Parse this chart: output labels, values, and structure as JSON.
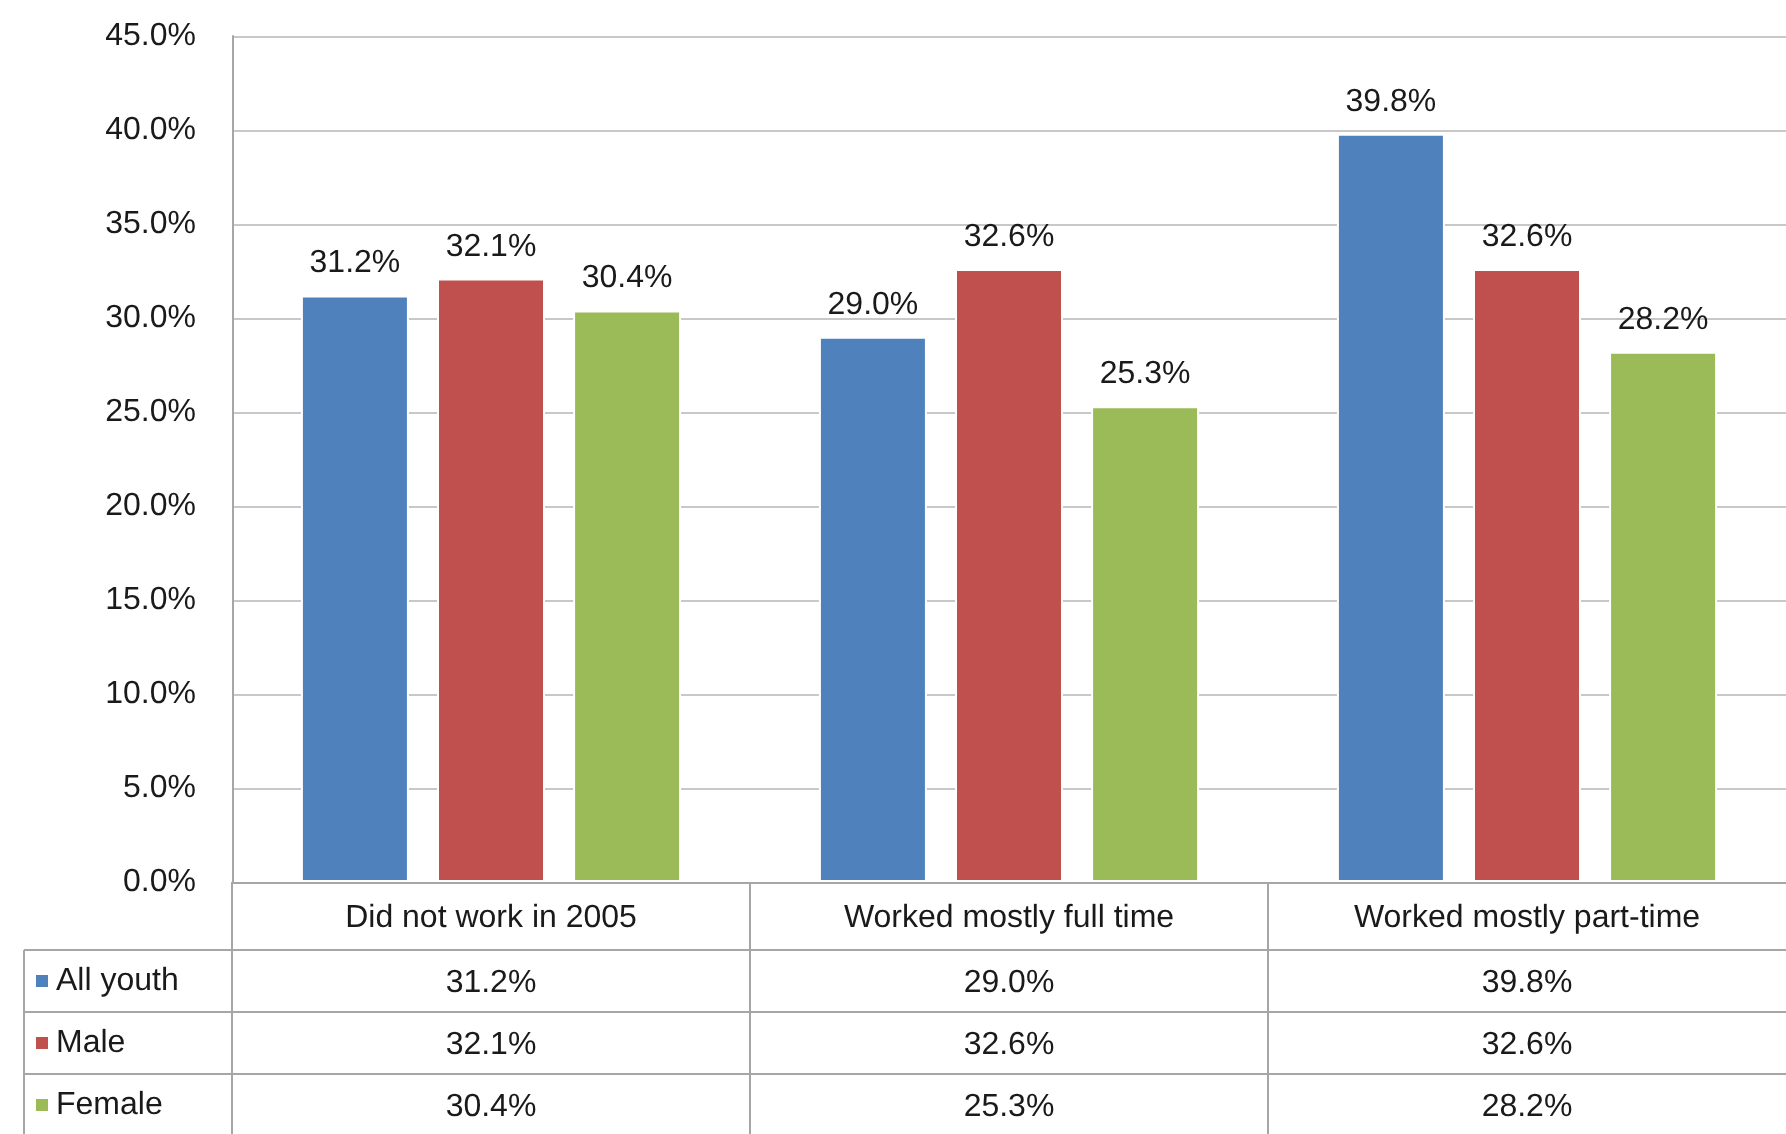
{
  "chart_data": {
    "type": "bar",
    "categories": [
      "Did not work in 2005",
      "Worked mostly full time",
      "Worked mostly part-time"
    ],
    "series": [
      {
        "name": "All youth",
        "color": "#4f81bd",
        "values": [
          31.2,
          29.0,
          39.8
        ],
        "value_labels": [
          "31.2%",
          "29.0%",
          "39.8%"
        ]
      },
      {
        "name": "Male",
        "color": "#c0504d",
        "values": [
          32.1,
          32.6,
          32.6
        ],
        "value_labels": [
          "32.1%",
          "32.6%",
          "32.6%"
        ]
      },
      {
        "name": "Female",
        "color": "#9bbb59",
        "values": [
          30.4,
          25.3,
          28.2
        ],
        "value_labels": [
          "30.4%",
          "25.3%",
          "28.2%"
        ]
      }
    ],
    "ylim": [
      0,
      45
    ],
    "yticks": [
      {
        "value": 0,
        "label": "0.0%"
      },
      {
        "value": 5,
        "label": "5.0%"
      },
      {
        "value": 10,
        "label": "10.0%"
      },
      {
        "value": 15,
        "label": "15.0%"
      },
      {
        "value": 20,
        "label": "20.0%"
      },
      {
        "value": 25,
        "label": "25.0%"
      },
      {
        "value": 30,
        "label": "30.0%"
      },
      {
        "value": 35,
        "label": "35.0%"
      },
      {
        "value": 40,
        "label": "40.0%"
      },
      {
        "value": 45,
        "label": "45.0%"
      }
    ],
    "grid": "y",
    "legend": "bottom left"
  }
}
